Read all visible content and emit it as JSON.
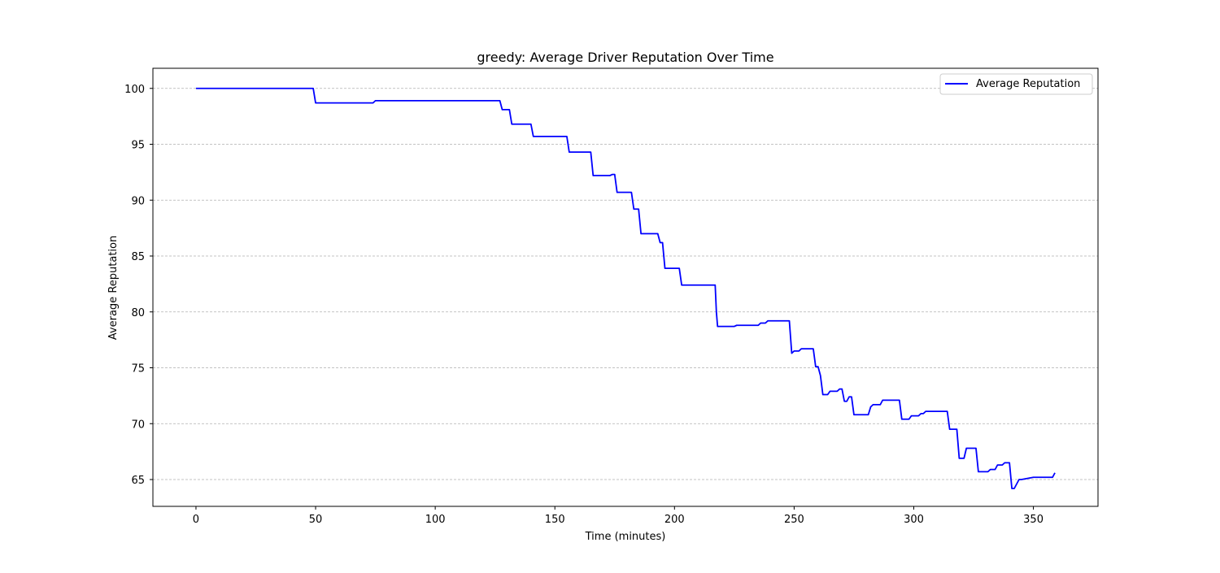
{
  "chart_data": {
    "type": "line",
    "title": "greedy: Average Driver Reputation Over Time",
    "xlabel": "Time (minutes)",
    "ylabel": "Average Reputation",
    "xlim": [
      -18,
      377
    ],
    "ylim": [
      62.6,
      101.8
    ],
    "xticks": [
      0,
      50,
      100,
      150,
      200,
      250,
      300,
      350
    ],
    "yticks": [
      65,
      70,
      75,
      80,
      85,
      90,
      95,
      100
    ],
    "grid": "y-dashed",
    "legend": {
      "position": "top-right"
    },
    "colors": {
      "line": "#0000ff",
      "grid": "#b0b0b0",
      "axes": "#000000"
    },
    "series": [
      {
        "name": "Average Reputation",
        "x": [
          0,
          49,
          50,
          74,
          75,
          127,
          128,
          131,
          132,
          140,
          141,
          155,
          156,
          165,
          166,
          173,
          174,
          175,
          176,
          182,
          183,
          185,
          186,
          193,
          194,
          195,
          196,
          202,
          203,
          217,
          217.5,
          218,
          225,
          226,
          235,
          236,
          238,
          239,
          248,
          249,
          250,
          252,
          253,
          258,
          259,
          260,
          261,
          262,
          264,
          265,
          268,
          269,
          270,
          271,
          272,
          273,
          274,
          275,
          281,
          282,
          283,
          286,
          287,
          294,
          295,
          298,
          299,
          302,
          303,
          304,
          305,
          314,
          315,
          318,
          319,
          321,
          322,
          326,
          327,
          331,
          332,
          334,
          335,
          337,
          338,
          340,
          341,
          342,
          344,
          345,
          350,
          351,
          358,
          359
        ],
        "y": [
          100,
          100,
          98.7,
          98.7,
          98.9,
          98.9,
          98.1,
          98.1,
          96.8,
          96.8,
          95.7,
          95.7,
          94.3,
          94.3,
          92.2,
          92.2,
          92.3,
          92.3,
          90.7,
          90.7,
          89.2,
          89.2,
          87.0,
          87.0,
          86.2,
          86.2,
          83.9,
          83.9,
          82.4,
          82.4,
          80.0,
          78.7,
          78.7,
          78.8,
          78.8,
          79.0,
          79.0,
          79.2,
          79.2,
          76.3,
          76.5,
          76.5,
          76.7,
          76.7,
          75.1,
          75.1,
          74.3,
          72.6,
          72.6,
          72.9,
          72.9,
          73.1,
          73.1,
          72.0,
          72.0,
          72.4,
          72.4,
          70.8,
          70.8,
          71.5,
          71.7,
          71.7,
          72.1,
          72.1,
          70.4,
          70.4,
          70.7,
          70.7,
          70.9,
          70.9,
          71.1,
          71.1,
          69.5,
          69.5,
          66.9,
          66.9,
          67.8,
          67.8,
          65.7,
          65.7,
          65.9,
          65.9,
          66.3,
          66.3,
          66.5,
          66.5,
          64.2,
          64.2,
          65.0,
          65.0,
          65.2,
          65.2,
          65.2,
          65.6
        ]
      }
    ]
  }
}
